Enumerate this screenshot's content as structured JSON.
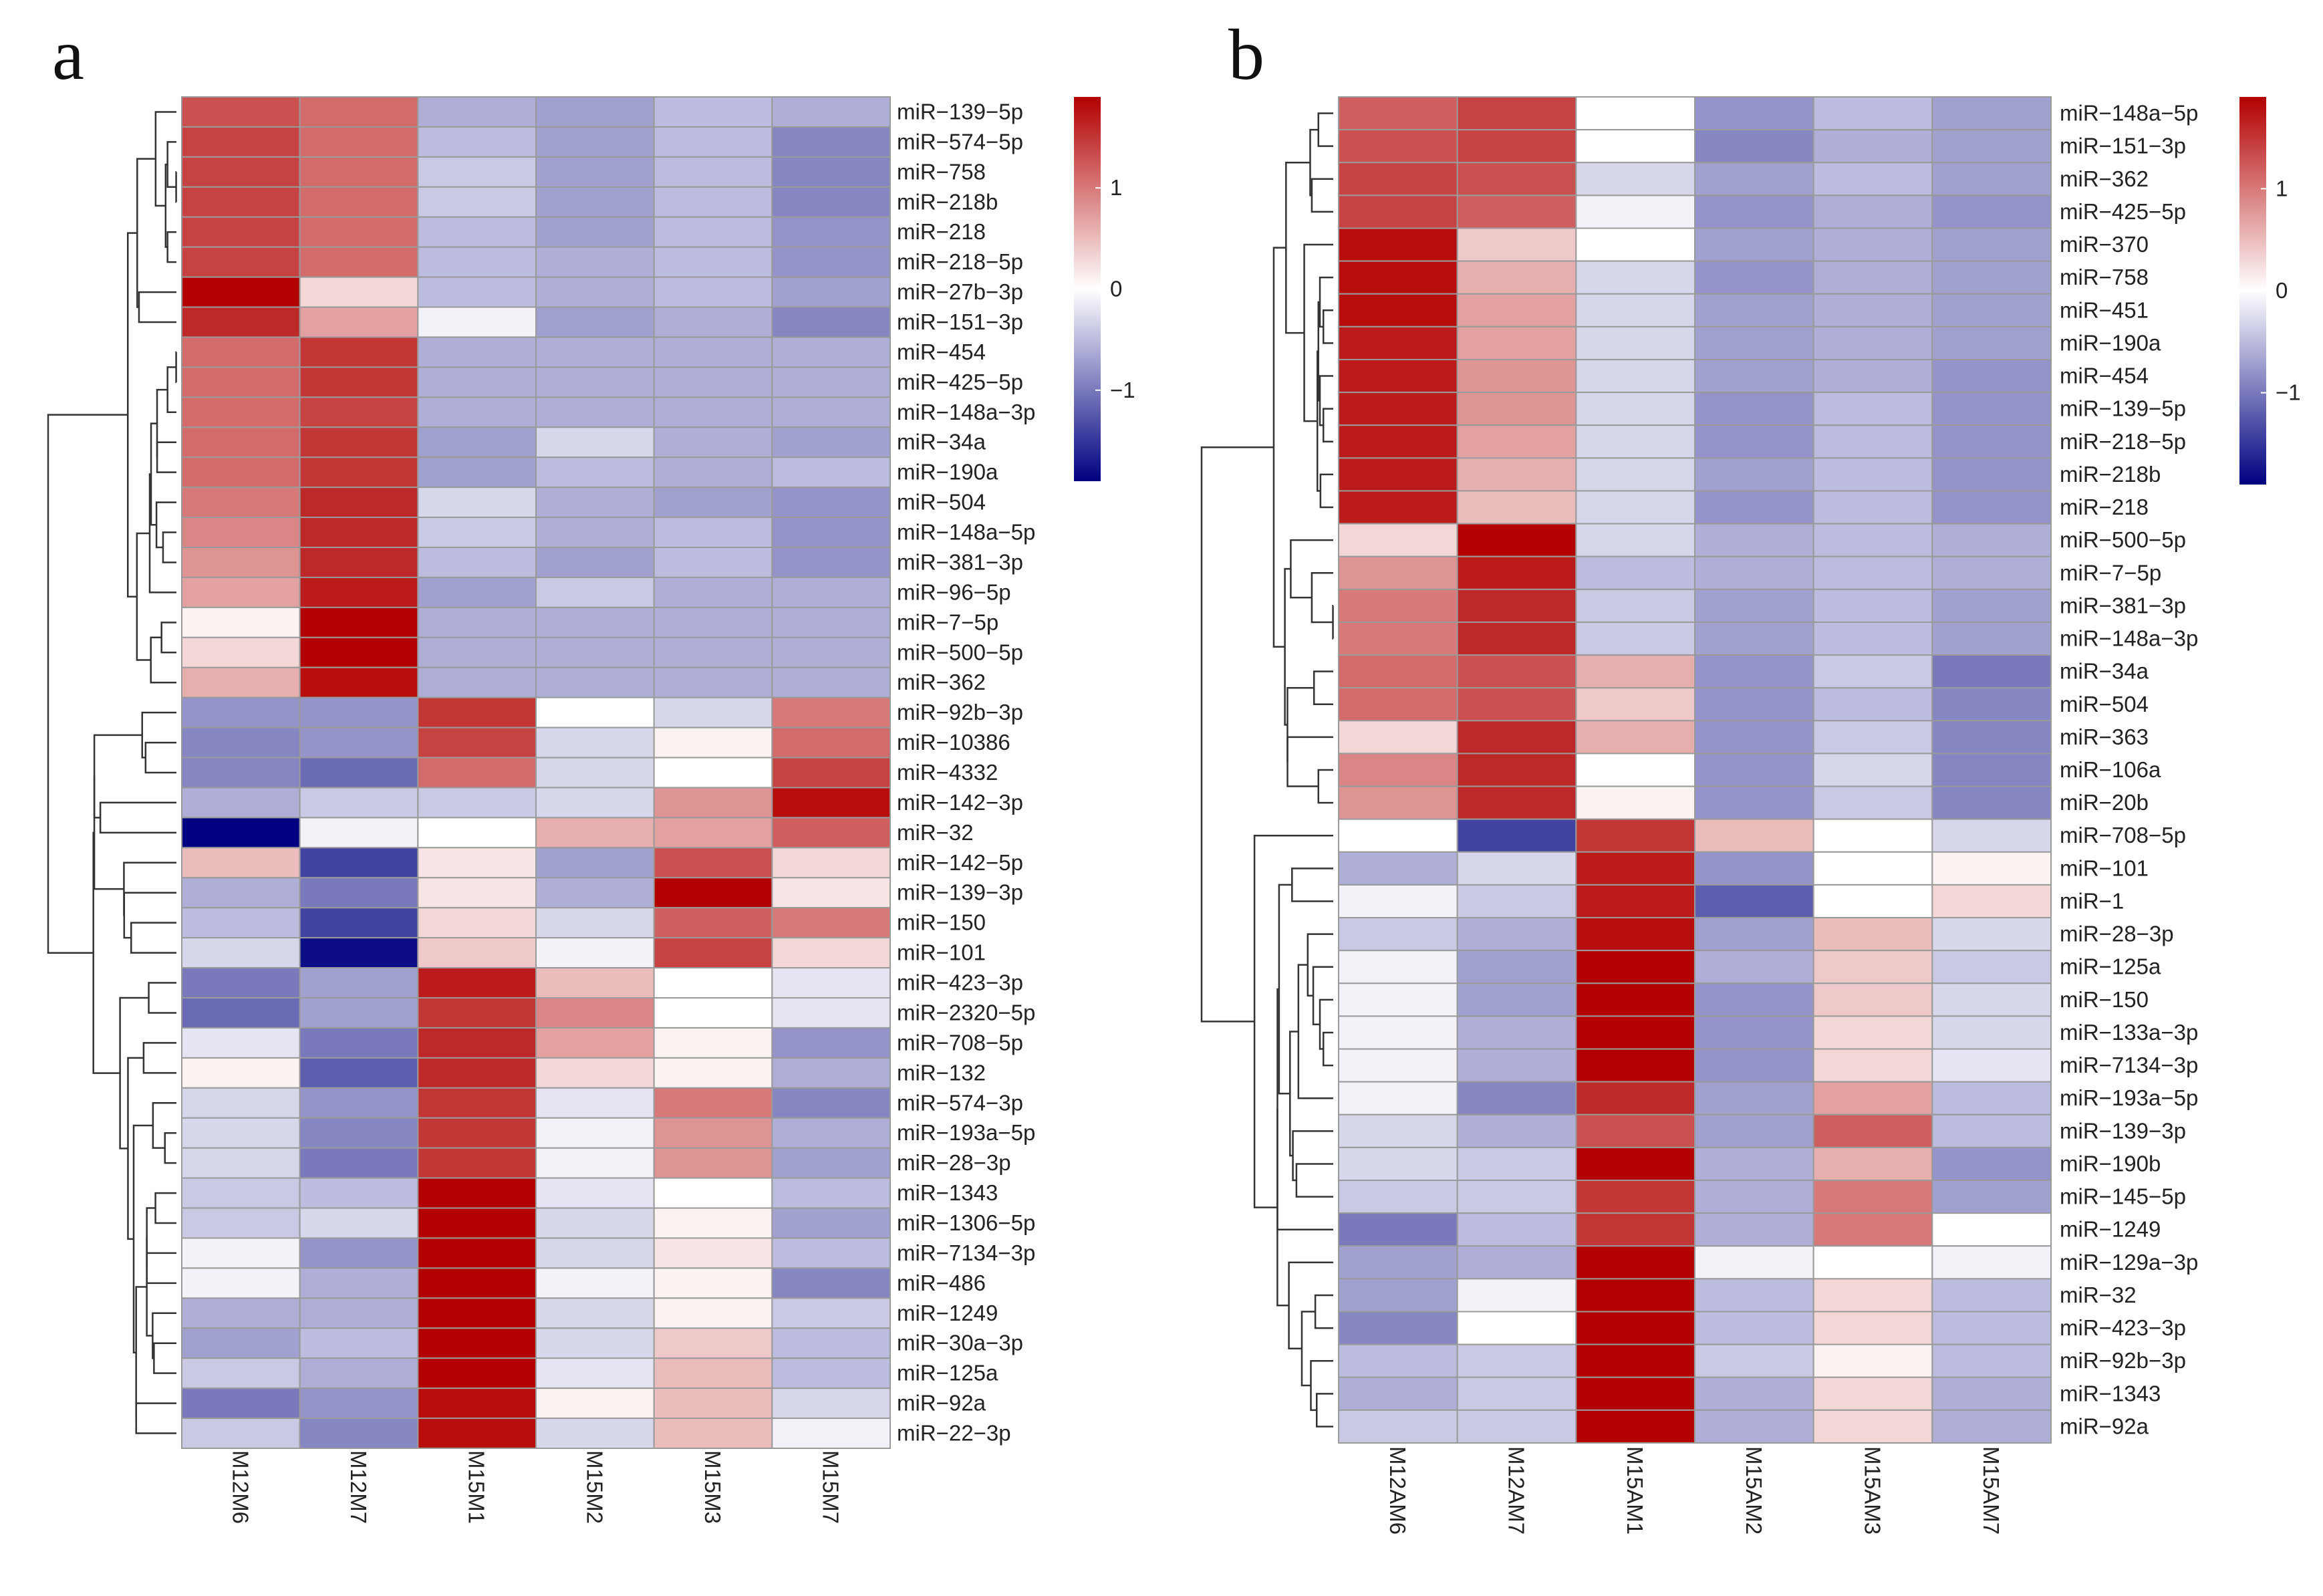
{
  "chart_data": [
    {
      "type": "heatmap",
      "panel": "a",
      "title": "",
      "columns": [
        "M12M6",
        "M12M7",
        "M15M1",
        "M15M2",
        "M15M3",
        "M15M7"
      ],
      "rows": [
        "miR−139−5p",
        "miR−574−5p",
        "miR−758",
        "miR−218b",
        "miR−218",
        "miR−218−5p",
        "miR−27b−3p",
        "miR−151−3p",
        "miR−454",
        "miR−425−5p",
        "miR−148a−3p",
        "miR−34a",
        "miR−190a",
        "miR−504",
        "miR−148a−5p",
        "miR−381−3p",
        "miR−96−5p",
        "miR−7−5p",
        "miR−500−5p",
        "miR−362",
        "miR−92b−3p",
        "miR−10386",
        "miR−4332",
        "miR−142−3p",
        "miR−32",
        "miR−142−5p",
        "miR−139−3p",
        "miR−150",
        "miR−101",
        "miR−423−3p",
        "miR−2320−5p",
        "miR−708−5p",
        "miR−132",
        "miR−574−3p",
        "miR−193a−5p",
        "miR−28−3p",
        "miR−1343",
        "miR−1306−5p",
        "miR−7134−3p",
        "miR−486",
        "miR−1249",
        "miR−30a−3p",
        "miR−125a",
        "miR−92a",
        "miR−22−3p"
      ],
      "values": [
        [
          1.3,
          1.1,
          -0.6,
          -0.7,
          -0.5,
          -0.6
        ],
        [
          1.4,
          1.1,
          -0.5,
          -0.7,
          -0.5,
          -0.9
        ],
        [
          1.4,
          1.1,
          -0.4,
          -0.7,
          -0.5,
          -0.9
        ],
        [
          1.4,
          1.1,
          -0.4,
          -0.7,
          -0.5,
          -0.9
        ],
        [
          1.4,
          1.1,
          -0.5,
          -0.7,
          -0.5,
          -0.8
        ],
        [
          1.4,
          1.1,
          -0.5,
          -0.6,
          -0.5,
          -0.8
        ],
        [
          1.9,
          0.3,
          -0.5,
          -0.6,
          -0.5,
          -0.7
        ],
        [
          1.6,
          0.7,
          -0.1,
          -0.7,
          -0.6,
          -0.9
        ],
        [
          1.1,
          1.5,
          -0.6,
          -0.6,
          -0.6,
          -0.6
        ],
        [
          1.1,
          1.5,
          -0.6,
          -0.6,
          -0.6,
          -0.6
        ],
        [
          1.1,
          1.4,
          -0.6,
          -0.6,
          -0.6,
          -0.6
        ],
        [
          1.1,
          1.5,
          -0.7,
          -0.3,
          -0.6,
          -0.7
        ],
        [
          1.1,
          1.5,
          -0.7,
          -0.5,
          -0.6,
          -0.5
        ],
        [
          1.0,
          1.6,
          -0.3,
          -0.6,
          -0.7,
          -0.8
        ],
        [
          0.9,
          1.6,
          -0.4,
          -0.6,
          -0.5,
          -0.8
        ],
        [
          0.8,
          1.6,
          -0.5,
          -0.7,
          -0.5,
          -0.8
        ],
        [
          0.7,
          1.7,
          -0.7,
          -0.4,
          -0.6,
          -0.6
        ],
        [
          0.1,
          1.9,
          -0.6,
          -0.6,
          -0.6,
          -0.6
        ],
        [
          0.3,
          1.9,
          -0.6,
          -0.6,
          -0.6,
          -0.6
        ],
        [
          0.6,
          1.8,
          -0.6,
          -0.6,
          -0.6,
          -0.6
        ],
        [
          -0.8,
          -0.8,
          1.5,
          0.0,
          -0.3,
          1.0
        ],
        [
          -0.9,
          -0.8,
          1.4,
          -0.3,
          0.1,
          1.1
        ],
        [
          -0.9,
          -1.1,
          1.1,
          -0.3,
          0.0,
          1.4
        ],
        [
          -0.6,
          -0.4,
          -0.4,
          -0.3,
          0.8,
          1.8
        ],
        [
          -1.9,
          -0.1,
          0.0,
          0.6,
          0.7,
          1.2
        ],
        [
          0.5,
          -1.4,
          0.2,
          -0.7,
          1.3,
          0.3
        ],
        [
          -0.6,
          -1.0,
          0.2,
          -0.6,
          1.9,
          0.2
        ],
        [
          -0.5,
          -1.4,
          0.3,
          -0.3,
          1.2,
          1.0
        ],
        [
          -0.3,
          -1.8,
          0.4,
          -0.1,
          1.4,
          0.3
        ],
        [
          -1.0,
          -0.7,
          1.7,
          0.5,
          0.0,
          -0.2
        ],
        [
          -1.1,
          -0.7,
          1.5,
          0.9,
          0.0,
          -0.2
        ],
        [
          -0.2,
          -1.0,
          1.6,
          0.7,
          0.1,
          -0.8
        ],
        [
          0.1,
          -1.2,
          1.6,
          0.3,
          0.1,
          -0.6
        ],
        [
          -0.3,
          -0.8,
          1.5,
          -0.2,
          1.0,
          -0.9
        ],
        [
          -0.3,
          -0.9,
          1.5,
          -0.1,
          0.8,
          -0.6
        ],
        [
          -0.3,
          -1.0,
          1.5,
          -0.1,
          0.8,
          -0.7
        ],
        [
          -0.4,
          -0.5,
          1.9,
          -0.2,
          0.0,
          -0.5
        ],
        [
          -0.4,
          -0.3,
          1.9,
          -0.3,
          0.1,
          -0.7
        ],
        [
          -0.1,
          -0.8,
          1.9,
          -0.3,
          0.2,
          -0.5
        ],
        [
          -0.1,
          -0.6,
          1.9,
          -0.1,
          0.1,
          -0.9
        ],
        [
          -0.6,
          -0.6,
          1.9,
          -0.3,
          0.1,
          -0.4
        ],
        [
          -0.7,
          -0.5,
          1.9,
          -0.3,
          0.4,
          -0.5
        ],
        [
          -0.4,
          -0.6,
          1.9,
          -0.2,
          0.5,
          -0.5
        ],
        [
          -1.0,
          -0.8,
          1.8,
          0.1,
          0.5,
          -0.3
        ],
        [
          -0.4,
          -0.9,
          1.8,
          -0.3,
          0.5,
          -0.1
        ]
      ],
      "colorbar": {
        "min": -1.9,
        "max": 1.9,
        "ticks": [
          1,
          0,
          -1
        ],
        "tick_labels": [
          "1",
          "0",
          "−1"
        ],
        "colors": [
          "#000080",
          "#ffffff",
          "#b30000"
        ]
      },
      "row_dendrogram": true
    },
    {
      "type": "heatmap",
      "panel": "b",
      "title": "",
      "columns": [
        "M12AM6",
        "M12AM7",
        "M15AM1",
        "M15AM2",
        "M15AM3",
        "M15AM7"
      ],
      "rows": [
        "miR−148a−5p",
        "miR−151−3p",
        "miR−362",
        "miR−425−5p",
        "miR−370",
        "miR−758",
        "miR−451",
        "miR−190a",
        "miR−454",
        "miR−139−5p",
        "miR−218−5p",
        "miR−218b",
        "miR−218",
        "miR−500−5p",
        "miR−7−5p",
        "miR−381−3p",
        "miR−148a−3p",
        "miR−34a",
        "miR−504",
        "miR−363",
        "miR−106a",
        "miR−20b",
        "miR−708−5p",
        "miR−101",
        "miR−1",
        "miR−28−3p",
        "miR−125a",
        "miR−150",
        "miR−133a−3p",
        "miR−7134−3p",
        "miR−193a−5p",
        "miR−139−3p",
        "miR−190b",
        "miR−145−5p",
        "miR−1249",
        "miR−129a−3p",
        "miR−32",
        "miR−423−3p",
        "miR−92b−3p",
        "miR−1343",
        "miR−92a"
      ],
      "values": [
        [
          1.2,
          1.4,
          0.0,
          -0.8,
          -0.5,
          -0.7
        ],
        [
          1.3,
          1.4,
          0.0,
          -0.9,
          -0.6,
          -0.7
        ],
        [
          1.4,
          1.3,
          -0.3,
          -0.7,
          -0.5,
          -0.7
        ],
        [
          1.4,
          1.2,
          -0.1,
          -0.8,
          -0.6,
          -0.8
        ],
        [
          1.8,
          0.4,
          0.0,
          -0.7,
          -0.6,
          -0.7
        ],
        [
          1.8,
          0.6,
          -0.3,
          -0.8,
          -0.6,
          -0.7
        ],
        [
          1.8,
          0.7,
          -0.3,
          -0.7,
          -0.6,
          -0.7
        ],
        [
          1.7,
          0.7,
          -0.3,
          -0.7,
          -0.6,
          -0.7
        ],
        [
          1.7,
          0.8,
          -0.3,
          -0.7,
          -0.6,
          -0.8
        ],
        [
          1.7,
          0.8,
          -0.3,
          -0.8,
          -0.5,
          -0.8
        ],
        [
          1.7,
          0.7,
          -0.3,
          -0.8,
          -0.5,
          -0.8
        ],
        [
          1.7,
          0.6,
          -0.3,
          -0.7,
          -0.5,
          -0.8
        ],
        [
          1.7,
          0.5,
          -0.3,
          -0.8,
          -0.5,
          -0.8
        ],
        [
          0.3,
          1.9,
          -0.3,
          -0.6,
          -0.5,
          -0.6
        ],
        [
          0.8,
          1.7,
          -0.5,
          -0.6,
          -0.5,
          -0.6
        ],
        [
          1.0,
          1.6,
          -0.4,
          -0.7,
          -0.5,
          -0.7
        ],
        [
          1.0,
          1.6,
          -0.4,
          -0.7,
          -0.5,
          -0.7
        ],
        [
          1.1,
          1.3,
          0.6,
          -0.8,
          -0.4,
          -1.0
        ],
        [
          1.1,
          1.3,
          0.4,
          -0.8,
          -0.5,
          -0.9
        ],
        [
          0.3,
          1.6,
          0.6,
          -0.8,
          -0.4,
          -0.9
        ],
        [
          0.9,
          1.6,
          0.0,
          -0.8,
          -0.3,
          -0.9
        ],
        [
          0.8,
          1.6,
          0.1,
          -0.8,
          -0.4,
          -0.9
        ],
        [
          0.0,
          -1.4,
          1.5,
          0.5,
          0.0,
          -0.3
        ],
        [
          -0.6,
          -0.3,
          1.7,
          -0.8,
          0.0,
          0.1
        ],
        [
          -0.1,
          -0.4,
          1.7,
          -1.2,
          0.0,
          0.3
        ],
        [
          -0.4,
          -0.6,
          1.8,
          -0.7,
          0.5,
          -0.3
        ],
        [
          -0.1,
          -0.7,
          1.9,
          -0.6,
          0.4,
          -0.4
        ],
        [
          -0.1,
          -0.7,
          1.9,
          -0.8,
          0.4,
          -0.3
        ],
        [
          -0.1,
          -0.6,
          1.9,
          -0.8,
          0.3,
          -0.3
        ],
        [
          -0.1,
          -0.6,
          1.9,
          -0.8,
          0.3,
          -0.2
        ],
        [
          -0.1,
          -0.9,
          1.6,
          -0.7,
          0.7,
          -0.5
        ],
        [
          -0.3,
          -0.6,
          1.3,
          -0.7,
          1.2,
          -0.5
        ],
        [
          -0.3,
          -0.4,
          1.9,
          -0.6,
          0.6,
          -0.8
        ],
        [
          -0.4,
          -0.4,
          1.5,
          -0.6,
          1.0,
          -0.7
        ],
        [
          -1.0,
          -0.5,
          1.5,
          -0.6,
          1.0,
          0.0
        ],
        [
          -0.7,
          -0.6,
          1.9,
          -0.1,
          0.0,
          -0.1
        ],
        [
          -0.7,
          -0.1,
          1.9,
          -0.5,
          0.3,
          -0.5
        ],
        [
          -0.9,
          0.0,
          1.9,
          -0.5,
          0.3,
          -0.5
        ],
        [
          -0.5,
          -0.4,
          1.9,
          -0.4,
          0.1,
          -0.5
        ],
        [
          -0.6,
          -0.4,
          1.9,
          -0.6,
          0.3,
          -0.6
        ],
        [
          -0.4,
          -0.4,
          1.9,
          -0.6,
          0.3,
          -0.6
        ]
      ],
      "colorbar": {
        "min": -1.9,
        "max": 1.9,
        "ticks": [
          1,
          0,
          -1
        ],
        "tick_labels": [
          "1",
          "0",
          "−1"
        ],
        "colors": [
          "#000080",
          "#ffffff",
          "#b30000"
        ]
      },
      "row_dendrogram": true
    }
  ]
}
